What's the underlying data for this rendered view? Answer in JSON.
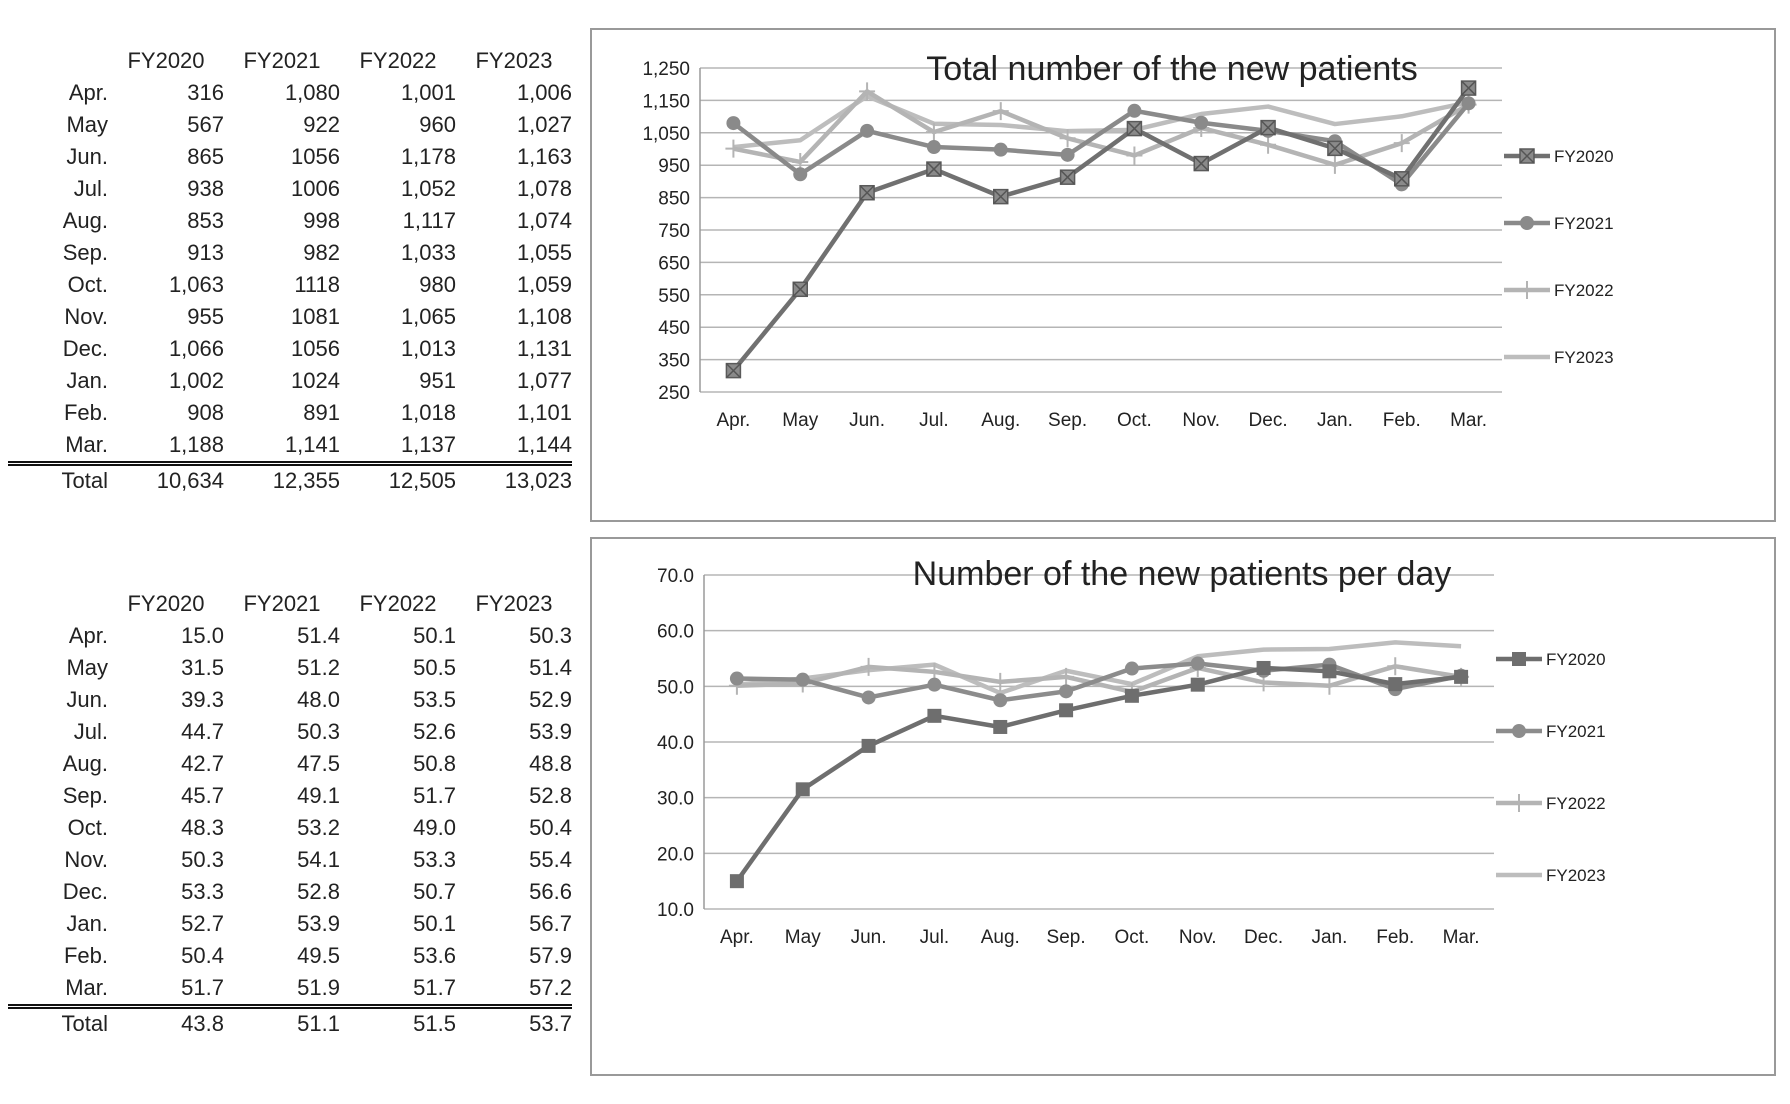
{
  "tables": [
    {
      "columns": [
        "FY2020",
        "FY2021",
        "FY2022",
        "FY2023"
      ],
      "rows": [
        {
          "label": "Apr.",
          "values": [
            "316",
            "1,080",
            "1,001",
            "1,006"
          ]
        },
        {
          "label": "May",
          "values": [
            "567",
            "922",
            "960",
            "1,027"
          ]
        },
        {
          "label": "Jun.",
          "values": [
            "865",
            "1056",
            "1,178",
            "1,163"
          ]
        },
        {
          "label": "Jul.",
          "values": [
            "938",
            "1006",
            "1,052",
            "1,078"
          ]
        },
        {
          "label": "Aug.",
          "values": [
            "853",
            "998",
            "1,117",
            "1,074"
          ]
        },
        {
          "label": "Sep.",
          "values": [
            "913",
            "982",
            "1,033",
            "1,055"
          ]
        },
        {
          "label": "Oct.",
          "values": [
            "1,063",
            "1118",
            "980",
            "1,059"
          ]
        },
        {
          "label": "Nov.",
          "values": [
            "955",
            "1081",
            "1,065",
            "1,108"
          ]
        },
        {
          "label": "Dec.",
          "values": [
            "1,066",
            "1056",
            "1,013",
            "1,131"
          ]
        },
        {
          "label": "Jan.",
          "values": [
            "1,002",
            "1024",
            "951",
            "1,077"
          ]
        },
        {
          "label": "Feb.",
          "values": [
            "908",
            "891",
            "1,018",
            "1,101"
          ]
        },
        {
          "label": "Mar.",
          "values": [
            "1,188",
            "1,141",
            "1,137",
            "1,144"
          ]
        }
      ],
      "total": {
        "label": "Total",
        "values": [
          "10,634",
          "12,355",
          "12,505",
          "13,023"
        ]
      }
    },
    {
      "columns": [
        "FY2020",
        "FY2021",
        "FY2022",
        "FY2023"
      ],
      "rows": [
        {
          "label": "Apr.",
          "values": [
            "15.0",
            "51.4",
            "50.1",
            "50.3"
          ]
        },
        {
          "label": "May",
          "values": [
            "31.5",
            "51.2",
            "50.5",
            "51.4"
          ]
        },
        {
          "label": "Jun.",
          "values": [
            "39.3",
            "48.0",
            "53.5",
            "52.9"
          ]
        },
        {
          "label": "Jul.",
          "values": [
            "44.7",
            "50.3",
            "52.6",
            "53.9"
          ]
        },
        {
          "label": "Aug.",
          "values": [
            "42.7",
            "47.5",
            "50.8",
            "48.8"
          ]
        },
        {
          "label": "Sep.",
          "values": [
            "45.7",
            "49.1",
            "51.7",
            "52.8"
          ]
        },
        {
          "label": "Oct.",
          "values": [
            "48.3",
            "53.2",
            "49.0",
            "50.4"
          ]
        },
        {
          "label": "Nov.",
          "values": [
            "50.3",
            "54.1",
            "53.3",
            "55.4"
          ]
        },
        {
          "label": "Dec.",
          "values": [
            "53.3",
            "52.8",
            "50.7",
            "56.6"
          ]
        },
        {
          "label": "Jan.",
          "values": [
            "52.7",
            "53.9",
            "50.1",
            "56.7"
          ]
        },
        {
          "label": "Feb.",
          "values": [
            "50.4",
            "49.5",
            "53.6",
            "57.9"
          ]
        },
        {
          "label": "Mar.",
          "values": [
            "51.7",
            "51.9",
            "51.7",
            "57.2"
          ]
        }
      ],
      "total": {
        "label": "Total",
        "values": [
          "43.8",
          "51.1",
          "51.5",
          "53.7"
        ]
      }
    }
  ],
  "chart_data": [
    {
      "type": "line",
      "title": "Total number of the new patients",
      "xlabel": "",
      "ylabel": "",
      "categories": [
        "Apr.",
        "May",
        "Jun.",
        "Jul.",
        "Aug.",
        "Sep.",
        "Oct.",
        "Nov.",
        "Dec.",
        "Jan.",
        "Feb.",
        "Mar."
      ],
      "ylim": [
        250,
        1250
      ],
      "yticks": [
        250,
        350,
        450,
        550,
        650,
        750,
        850,
        950,
        1050,
        1150,
        1250
      ],
      "ytick_labels": [
        "250",
        "350",
        "450",
        "550",
        "650",
        "750",
        "850",
        "950",
        "1,050",
        "1,150",
        "1,250"
      ],
      "grid": true,
      "legend_position": "right",
      "series": [
        {
          "name": "FY2020",
          "marker": "square-x",
          "color": "#707070",
          "values": [
            316,
            567,
            865,
            938,
            853,
            913,
            1063,
            955,
            1066,
            1002,
            908,
            1188
          ]
        },
        {
          "name": "FY2021",
          "marker": "circle",
          "color": "#8a8a8a",
          "values": [
            1080,
            922,
            1056,
            1006,
            998,
            982,
            1118,
            1081,
            1056,
            1024,
            891,
            1141
          ]
        },
        {
          "name": "FY2022",
          "marker": "plus",
          "color": "#b4b4b4",
          "values": [
            1001,
            960,
            1178,
            1052,
            1117,
            1033,
            980,
            1065,
            1013,
            951,
            1018,
            1137
          ]
        },
        {
          "name": "FY2023",
          "marker": "none",
          "color": "#bdbdbd",
          "values": [
            1006,
            1027,
            1163,
            1078,
            1074,
            1055,
            1059,
            1108,
            1131,
            1077,
            1101,
            1144
          ]
        }
      ]
    },
    {
      "type": "line",
      "title": "Number of the new patients per day",
      "xlabel": "",
      "ylabel": "",
      "categories": [
        "Apr.",
        "May",
        "Jun.",
        "Jul.",
        "Aug.",
        "Sep.",
        "Oct.",
        "Nov.",
        "Dec.",
        "Jan.",
        "Feb.",
        "Mar."
      ],
      "ylim": [
        10,
        70
      ],
      "yticks": [
        10,
        20,
        30,
        40,
        50,
        60,
        70
      ],
      "ytick_labels": [
        "10.0",
        "20.0",
        "30.0",
        "40.0",
        "50.0",
        "60.0",
        "70.0"
      ],
      "grid": true,
      "legend_position": "right",
      "series": [
        {
          "name": "FY2020",
          "marker": "square",
          "color": "#6e6e6e",
          "values": [
            15.0,
            31.5,
            39.3,
            44.7,
            42.7,
            45.7,
            48.3,
            50.3,
            53.3,
            52.7,
            50.4,
            51.7
          ]
        },
        {
          "name": "FY2021",
          "marker": "circle",
          "color": "#8c8c8c",
          "values": [
            51.4,
            51.2,
            48.0,
            50.3,
            47.5,
            49.1,
            53.2,
            54.1,
            52.8,
            53.9,
            49.5,
            51.9
          ]
        },
        {
          "name": "FY2022",
          "marker": "plus",
          "color": "#b4b4b4",
          "values": [
            50.1,
            50.5,
            53.5,
            52.6,
            50.8,
            51.7,
            49.0,
            53.3,
            50.7,
            50.1,
            53.6,
            51.7
          ]
        },
        {
          "name": "FY2023",
          "marker": "none",
          "color": "#bdbdbd",
          "values": [
            50.3,
            51.4,
            52.9,
            53.9,
            48.8,
            52.8,
            50.4,
            55.4,
            56.6,
            56.7,
            57.9,
            57.2
          ]
        }
      ]
    }
  ]
}
